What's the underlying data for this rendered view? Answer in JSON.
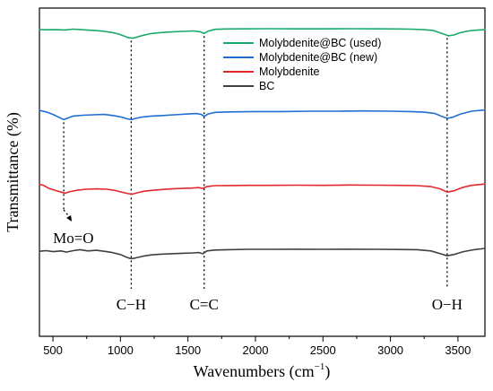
{
  "chart_data": {
    "type": "line",
    "title": "",
    "xlabel": "Wavenumbers (cm",
    "xlabel_sup": "−1",
    "xlabel_suffix": ")",
    "ylabel": "Transmittance (%)",
    "xlim": [
      400,
      3700
    ],
    "xticks": [
      500,
      1000,
      1500,
      2000,
      2500,
      3000,
      3500
    ],
    "x_minor_ticks": [
      750,
      1250,
      1750,
      2250,
      2750,
      3250
    ],
    "y_ticks_shown": false,
    "grid": false,
    "legend_position": "upper-middle",
    "legend": [
      {
        "name": "Molybdenite@BC (used)",
        "color": "#19a96b"
      },
      {
        "name": "Molybdenite@BC (new)",
        "color": "#1e6fd1"
      },
      {
        "name": "Molybdenite",
        "color": "#e0282d"
      },
      {
        "name": "BC",
        "color": "#3f3f3f"
      }
    ],
    "series": [
      {
        "name": "Molybdenite@BC (used)",
        "color": "#19a96b",
        "offset": 3,
        "x": [
          400,
          450,
          520,
          590,
          650,
          700,
          760,
          820,
          880,
          940,
          990,
          1030,
          1060,
          1090,
          1120,
          1160,
          1220,
          1300,
          1380,
          1460,
          1540,
          1590,
          1620,
          1650,
          1700,
          1780,
          1900,
          2100,
          2300,
          2500,
          2700,
          2900,
          3050,
          3150,
          3250,
          3320,
          3380,
          3430,
          3470,
          3520,
          3580,
          3640,
          3700
        ],
        "y": [
          0.84,
          0.82,
          0.83,
          0.81,
          0.86,
          0.84,
          0.8,
          0.77,
          0.72,
          0.65,
          0.55,
          0.42,
          0.33,
          0.3,
          0.36,
          0.46,
          0.58,
          0.65,
          0.69,
          0.72,
          0.75,
          0.7,
          0.6,
          0.74,
          0.85,
          0.87,
          0.88,
          0.89,
          0.88,
          0.88,
          0.89,
          0.88,
          0.87,
          0.86,
          0.83,
          0.77,
          0.6,
          0.45,
          0.5,
          0.65,
          0.75,
          0.8,
          0.83
        ]
      },
      {
        "name": "Molybdenite@BC (new)",
        "color": "#1e6fd1",
        "offset": 2,
        "x": [
          400,
          450,
          500,
          550,
          580,
          610,
          650,
          720,
          800,
          880,
          950,
          1010,
          1050,
          1080,
          1110,
          1160,
          1230,
          1300,
          1400,
          1500,
          1560,
          1600,
          1620,
          1650,
          1700,
          1800,
          2000,
          2200,
          2400,
          2600,
          2800,
          3000,
          3150,
          3250,
          3330,
          3380,
          3420,
          3460,
          3520,
          3600,
          3700
        ],
        "y": [
          0.78,
          0.68,
          0.52,
          0.32,
          0.2,
          0.3,
          0.42,
          0.47,
          0.5,
          0.52,
          0.45,
          0.35,
          0.25,
          0.2,
          0.27,
          0.36,
          0.42,
          0.45,
          0.5,
          0.55,
          0.58,
          0.52,
          0.4,
          0.55,
          0.65,
          0.68,
          0.7,
          0.7,
          0.72,
          0.72,
          0.74,
          0.72,
          0.7,
          0.66,
          0.58,
          0.4,
          0.28,
          0.35,
          0.55,
          0.72,
          0.8
        ]
      },
      {
        "name": "Molybdenite",
        "color": "#e0282d",
        "offset": 1,
        "x": [
          400,
          430,
          470,
          520,
          560,
          590,
          620,
          680,
          750,
          820,
          900,
          960,
          1020,
          1060,
          1090,
          1120,
          1170,
          1230,
          1300,
          1380,
          1460,
          1530,
          1580,
          1610,
          1640,
          1700,
          1800,
          1950,
          2100,
          2300,
          2500,
          2700,
          2900,
          3050,
          3200,
          3300,
          3370,
          3420,
          3470,
          3530,
          3600,
          3700
        ],
        "y": [
          0.8,
          0.74,
          0.55,
          0.42,
          0.32,
          0.25,
          0.34,
          0.44,
          0.5,
          0.52,
          0.5,
          0.42,
          0.3,
          0.22,
          0.2,
          0.27,
          0.37,
          0.43,
          0.48,
          0.52,
          0.55,
          0.57,
          0.6,
          0.55,
          0.66,
          0.72,
          0.73,
          0.74,
          0.74,
          0.75,
          0.74,
          0.76,
          0.75,
          0.74,
          0.72,
          0.66,
          0.52,
          0.32,
          0.4,
          0.6,
          0.74,
          0.82
        ]
      },
      {
        "name": "BC",
        "color": "#3f3f3f",
        "offset": 0,
        "x": [
          400,
          450,
          500,
          560,
          600,
          650,
          700,
          760,
          820,
          880,
          940,
          1000,
          1040,
          1070,
          1090,
          1120,
          1170,
          1230,
          1300,
          1380,
          1460,
          1540,
          1580,
          1610,
          1640,
          1700,
          1800,
          1950,
          2100,
          2300,
          2500,
          2700,
          2900,
          3050,
          3200,
          3300,
          3370,
          3420,
          3470,
          3540,
          3620,
          3700
        ],
        "y": [
          0.6,
          0.64,
          0.58,
          0.62,
          0.55,
          0.64,
          0.7,
          0.62,
          0.66,
          0.6,
          0.52,
          0.4,
          0.25,
          0.16,
          0.15,
          0.2,
          0.3,
          0.38,
          0.42,
          0.45,
          0.48,
          0.5,
          0.52,
          0.45,
          0.62,
          0.68,
          0.7,
          0.72,
          0.72,
          0.73,
          0.72,
          0.73,
          0.72,
          0.71,
          0.7,
          0.62,
          0.45,
          0.32,
          0.4,
          0.58,
          0.7,
          0.78
        ]
      }
    ],
    "reference_lines": [
      {
        "x": 580,
        "label": "Mo=O",
        "series_offset": 2
      },
      {
        "x": 1080,
        "label": "C−H",
        "series_offset": 3
      },
      {
        "x": 1620,
        "label": "C=C",
        "series_offset": 3
      },
      {
        "x": 3420,
        "label": "O−H",
        "series_offset": 3
      }
    ]
  }
}
